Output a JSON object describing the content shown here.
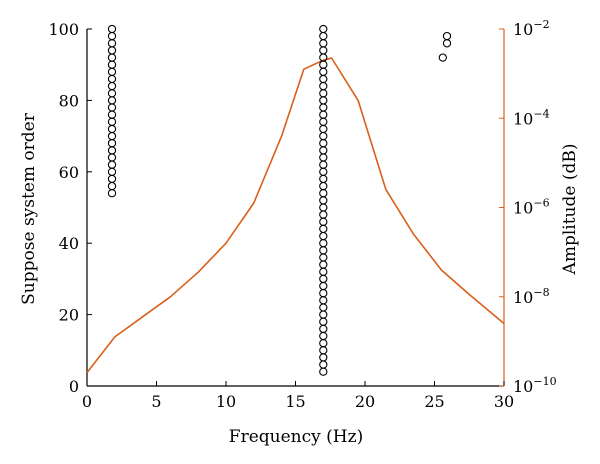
{
  "chart_data": {
    "type": "scatter",
    "title": "",
    "xlabel": "Frequency (Hz)",
    "ylabel": "Suppose system order",
    "ylabel_right": "Amplitude (dB)",
    "xlim": [
      0,
      30
    ],
    "ylim": [
      0,
      100
    ],
    "ylim_right_log10": [
      -10,
      -2
    ],
    "x_ticks": [
      "0",
      "5",
      "10",
      "15",
      "20",
      "25",
      "30"
    ],
    "y_ticks_left": [
      "0",
      "20",
      "40",
      "60",
      "80",
      "100"
    ],
    "y_ticks_right_mantissa": [
      "10",
      "10",
      "10",
      "10",
      "10"
    ],
    "y_ticks_right_exponent": [
      "−10",
      "−8",
      "−6",
      "−4",
      "−2"
    ],
    "y_ticks_right_log10": [
      -10,
      -8,
      -6,
      -4,
      -2
    ],
    "grid": false,
    "series": [
      {
        "type": "scatter",
        "axis": "left",
        "marker": "open-circle",
        "color": "#000000",
        "points": [
          {
            "x": 1.8,
            "y_from": 54,
            "y_to": 100,
            "step": 2
          },
          {
            "x": 17.0,
            "y_from": 4,
            "y_to": 100,
            "step": 2
          },
          {
            "x": 25.6,
            "y": 92
          },
          {
            "x": 25.9,
            "y": 96
          },
          {
            "x": 25.9,
            "y": 98
          }
        ]
      },
      {
        "type": "line",
        "axis": "right",
        "color": "#d9601a",
        "x": [
          0,
          2,
          4,
          6,
          8,
          10,
          12,
          14,
          15.6,
          17.0,
          17.6,
          19.5,
          21.5,
          23.5,
          25.5,
          27.5,
          30
        ],
        "log10_amplitude": [
          -9.7,
          -8.9,
          -8.45,
          -8.0,
          -7.45,
          -6.8,
          -5.9,
          -4.4,
          -2.9,
          -2.7,
          -2.65,
          -3.6,
          -5.6,
          -6.6,
          -7.4,
          -7.95,
          -8.6
        ]
      }
    ]
  }
}
